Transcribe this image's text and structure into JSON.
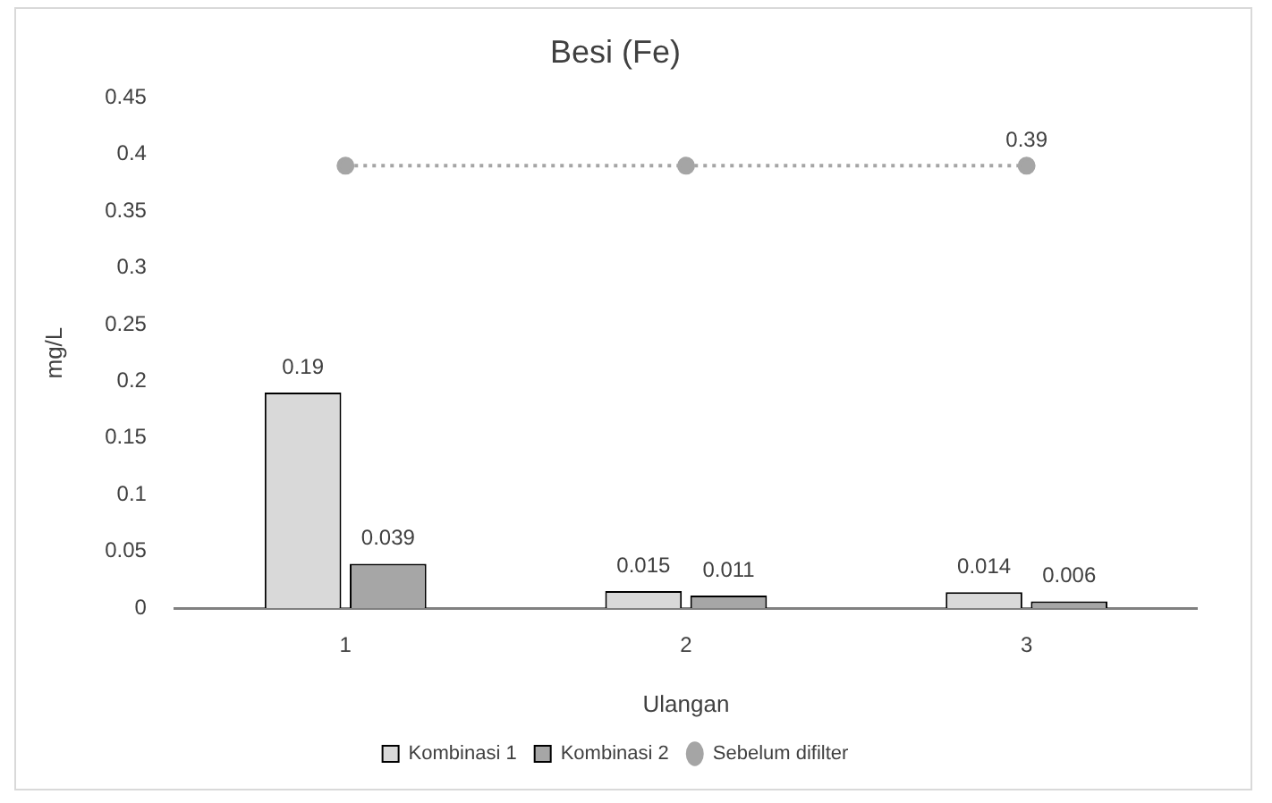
{
  "chart_data": {
    "type": "bar",
    "title": "Besi (Fe)",
    "xlabel": "Ulangan",
    "ylabel": "mg/L",
    "categories": [
      "1",
      "2",
      "3"
    ],
    "series": [
      {
        "name": "Kombinasi 1",
        "color": "#d9d9d9",
        "values": [
          0.19,
          0.015,
          0.014
        ],
        "value_labels": [
          "0.19",
          "0.015",
          "0.014"
        ]
      },
      {
        "name": "Kombinasi 2",
        "color": "#a6a6a6",
        "values": [
          0.039,
          0.011,
          0.006
        ],
        "value_labels": [
          "0.039",
          "0.011",
          "0.006"
        ]
      },
      {
        "name": "Sebelum difilter",
        "type": "line",
        "color": "#a5a5a5",
        "values": [
          0.39,
          0.39,
          0.39
        ],
        "value_labels": [
          null,
          null,
          "0.39"
        ],
        "marker": "circle",
        "line_style": "dotted"
      }
    ],
    "ylim": [
      0,
      0.45
    ],
    "yticks": [
      0,
      0.05,
      0.1,
      0.15,
      0.2,
      0.25,
      0.3,
      0.35,
      0.4,
      0.45
    ],
    "grid": false,
    "legend": "bottom"
  }
}
